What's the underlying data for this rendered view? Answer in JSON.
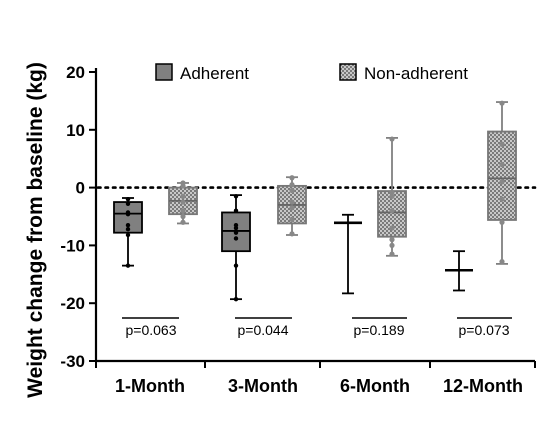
{
  "chart_data": {
    "type": "box",
    "ylabel": "Weight change from baseline (kg)",
    "xlabel": "",
    "ylim": [
      -30,
      20
    ],
    "yticks": [
      20,
      10,
      0,
      -10,
      -20,
      -30
    ],
    "reference_line": 0,
    "legend_position": "top",
    "categories": [
      "1-Month",
      "3-Month",
      "6-Month",
      "12-Month"
    ],
    "series": [
      {
        "name": "Adherent",
        "color": "#808080",
        "pattern": "solid",
        "boxes": [
          {
            "min": -13.5,
            "q1": -7.8,
            "median": -4.5,
            "q3": -2.5,
            "max": -1.8,
            "points": [
              -2.0,
              -2.8,
              -4.3,
              -4.6,
              -6.5,
              -7.2,
              -8.2,
              -13.5
            ]
          },
          {
            "min": -19.3,
            "q1": -11.0,
            "median": -7.5,
            "q3": -4.3,
            "max": -1.3,
            "points": [
              -1.5,
              -4.0,
              -6.5,
              -7.0,
              -7.8,
              -8.8,
              -13.5,
              -19.3
            ]
          },
          {
            "min": -18.3,
            "q1": -6.1,
            "median": -6.1,
            "q3": -6.1,
            "max": -4.7,
            "points": []
          },
          {
            "min": -17.8,
            "q1": -14.3,
            "median": -14.3,
            "q3": -14.3,
            "max": -11.0,
            "points": []
          }
        ]
      },
      {
        "name": "Non-adherent",
        "color": "#a6a6a6",
        "pattern": "checkered",
        "boxes": [
          {
            "min": -6.2,
            "q1": -4.6,
            "median": -2.3,
            "q3": 0.0,
            "max": 0.8,
            "points": [
              0.8,
              0.3,
              -1.5,
              -2.5,
              -4.0,
              -5.0,
              -6.0
            ]
          },
          {
            "min": -8.2,
            "q1": -6.2,
            "median": -3.0,
            "q3": 0.3,
            "max": 1.8,
            "points": [
              1.7,
              0.5,
              -0.5,
              -2.5,
              -3.5,
              -5.5,
              -8.0
            ]
          },
          {
            "min": -11.8,
            "q1": -8.5,
            "median": -4.3,
            "q3": -0.6,
            "max": 8.6,
            "points": [
              8.4,
              -0.8,
              -1.5,
              -4.0,
              -7.0,
              -9.0,
              -10.0,
              -11.5
            ]
          },
          {
            "min": -13.2,
            "q1": -5.6,
            "median": 1.6,
            "q3": 9.7,
            "max": 14.8,
            "points": [
              14.6,
              7.5,
              4.0,
              1.0,
              -2.0,
              -6.0,
              -12.8
            ]
          }
        ]
      }
    ],
    "annotations": [
      "p=0.063",
      "p=0.044",
      "p=0.189",
      "p=0.073"
    ]
  }
}
